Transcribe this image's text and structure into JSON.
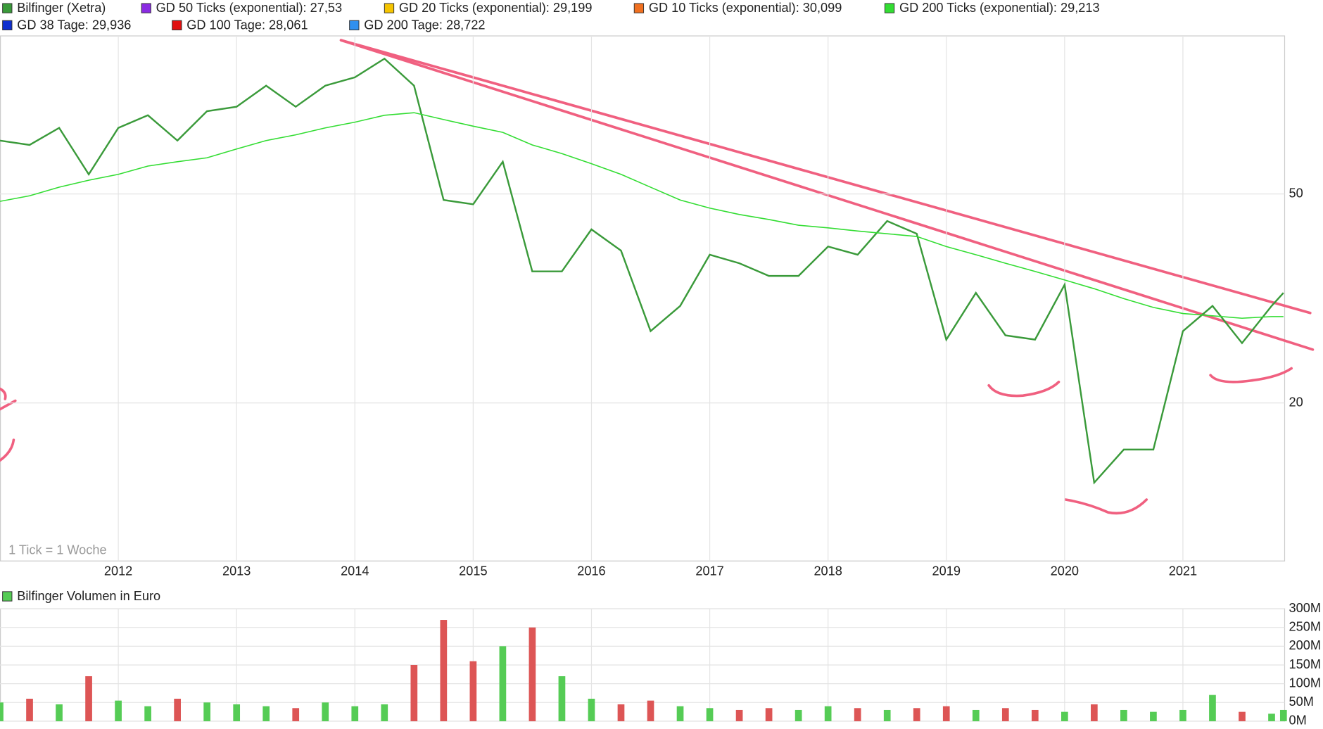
{
  "chart_data": [
    {
      "type": "line",
      "log_scale": true,
      "grid": true,
      "annotation": "1 Tick = 1 Woche",
      "x": [
        2011.0,
        2011.25,
        2011.5,
        2011.75,
        2012.0,
        2012.25,
        2012.5,
        2012.75,
        2013.0,
        2013.25,
        2013.5,
        2013.75,
        2014.0,
        2014.25,
        2014.5,
        2014.75,
        2015.0,
        2015.25,
        2015.5,
        2015.75,
        2016.0,
        2016.25,
        2016.5,
        2016.75,
        2017.0,
        2017.25,
        2017.5,
        2017.75,
        2018.0,
        2018.25,
        2018.5,
        2018.75,
        2019.0,
        2019.25,
        2019.5,
        2019.75,
        2020.0,
        2020.25,
        2020.5,
        2020.75,
        2021.0,
        2021.25,
        2021.5,
        2021.75,
        2021.85
      ],
      "series": [
        {
          "name": "Bilfinger (Xetra)",
          "color": "#3a9a3a",
          "values": [
            63.2,
            62.0,
            66.8,
            54.5,
            66.8,
            70.6,
            63.2,
            71.9,
            73.3,
            80.4,
            73.3,
            80.4,
            83.4,
            90.5,
            80.4,
            48.7,
            47.8,
            57.6,
            35.6,
            35.6,
            42.8,
            39.0,
            27.4,
            30.6,
            38.3,
            36.9,
            34.9,
            34.9,
            39.7,
            38.3,
            44.4,
            42.0,
            26.4,
            32.4,
            26.9,
            26.4,
            33.6,
            14.1,
            16.3,
            16.3,
            27.4,
            30.6,
            26.0,
            30.6,
            32.4
          ]
        },
        {
          "name": "GD 50 Ticks (exponential): 27,53",
          "color": "#8a2be2"
        },
        {
          "name": "GD 20 Ticks (exponential): 29,199",
          "color": "#f5c400"
        },
        {
          "name": "GD 10 Ticks (exponential): 30,099",
          "color": "#f07020"
        },
        {
          "name": "GD 200 Ticks (exponential): 29,213",
          "color": "#33dd33",
          "values": [
            48.4,
            49.6,
            51.5,
            53.1,
            54.5,
            56.5,
            57.6,
            58.6,
            60.9,
            63.2,
            64.8,
            66.8,
            68.5,
            70.6,
            71.4,
            69.3,
            67.3,
            65.5,
            62.0,
            59.7,
            57.1,
            54.5,
            51.5,
            48.7,
            47.0,
            45.7,
            44.7,
            43.6,
            43.1,
            42.5,
            42.0,
            41.5,
            39.7,
            38.3,
            36.9,
            35.6,
            34.3,
            33.0,
            31.6,
            30.4,
            29.6,
            29.3,
            29.0,
            29.2,
            29.2
          ]
        },
        {
          "name": "GD 38 Tage: 29,936",
          "color": "#1030d0"
        },
        {
          "name": "GD 100 Tage: 28,061",
          "color": "#e01010"
        },
        {
          "name": "GD 200 Tage: 28,722",
          "color": "#3090f0"
        }
      ],
      "xlim": [
        2011.0,
        2021.86
      ],
      "xticks": [
        2012,
        2013,
        2014,
        2015,
        2016,
        2017,
        2018,
        2019,
        2020,
        2021
      ],
      "ylim": [
        10,
        100
      ],
      "yticks": [
        20,
        50
      ]
    },
    {
      "type": "bar",
      "title": "Bilfinger Volumen in Euro",
      "color": "#55cc55",
      "down_color": "#dd5555",
      "grid": true,
      "x": [
        2011.0,
        2011.25,
        2011.5,
        2011.75,
        2012.0,
        2012.25,
        2012.5,
        2012.75,
        2013.0,
        2013.25,
        2013.5,
        2013.75,
        2014.0,
        2014.25,
        2014.5,
        2014.75,
        2015.0,
        2015.25,
        2015.5,
        2015.75,
        2016.0,
        2016.25,
        2016.5,
        2016.75,
        2017.0,
        2017.25,
        2017.5,
        2017.75,
        2018.0,
        2018.25,
        2018.5,
        2018.75,
        2019.0,
        2019.25,
        2019.5,
        2019.75,
        2020.0,
        2020.25,
        2020.5,
        2020.75,
        2021.0,
        2021.25,
        2021.5,
        2021.75,
        2021.85
      ],
      "values": [
        50000000,
        60000000,
        45000000,
        120000000,
        55000000,
        40000000,
        60000000,
        50000000,
        45000000,
        40000000,
        35000000,
        50000000,
        40000000,
        45000000,
        150000000,
        270000000,
        160000000,
        200000000,
        250000000,
        120000000,
        60000000,
        45000000,
        55000000,
        40000000,
        35000000,
        30000000,
        35000000,
        30000000,
        40000000,
        35000000,
        30000000,
        35000000,
        40000000,
        30000000,
        35000000,
        30000000,
        25000000,
        45000000,
        30000000,
        25000000,
        30000000,
        70000000,
        25000000,
        20000000,
        30000000
      ],
      "xlim": [
        2011.0,
        2021.86
      ],
      "ylim": [
        0,
        300000000
      ],
      "yticks": [
        {
          "value": 0,
          "label": "0M"
        },
        {
          "value": 50000000,
          "label": "50M"
        },
        {
          "value": 100000000,
          "label": "100M"
        },
        {
          "value": 150000000,
          "label": "150M"
        },
        {
          "value": 200000000,
          "label": "200M"
        },
        {
          "value": 250000000,
          "label": "250M"
        },
        {
          "value": 300000000,
          "label": "300M"
        }
      ]
    }
  ]
}
